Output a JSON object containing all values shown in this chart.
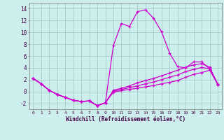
{
  "background_color": "#cceeed",
  "grid_color": "#aacccc",
  "line_color": "#cc00cc",
  "x_hours": [
    0,
    1,
    2,
    3,
    4,
    5,
    6,
    7,
    8,
    9,
    10,
    11,
    12,
    13,
    14,
    15,
    16,
    17,
    18,
    19,
    20,
    21,
    22,
    23
  ],
  "temp_line": [
    2.2,
    1.3,
    0.2,
    -0.5,
    -1.0,
    -1.5,
    -1.7,
    -1.6,
    -2.4,
    -1.9,
    7.8,
    11.5,
    11.0,
    13.5,
    13.8,
    12.4,
    10.1,
    6.5,
    4.2,
    4.0,
    5.0,
    5.0,
    3.8,
    1.3
  ],
  "wc_line1": [
    2.2,
    1.3,
    0.2,
    -0.5,
    -1.0,
    -1.5,
    -1.7,
    -1.6,
    -2.4,
    -1.9,
    -0.1,
    0.15,
    0.35,
    0.55,
    0.8,
    1.0,
    1.3,
    1.55,
    1.85,
    2.4,
    2.9,
    3.2,
    3.6,
    1.2
  ],
  "wc_line2": [
    2.2,
    1.3,
    0.2,
    -0.5,
    -1.0,
    -1.5,
    -1.7,
    -1.6,
    -2.4,
    -1.9,
    0.05,
    0.35,
    0.65,
    0.95,
    1.3,
    1.6,
    2.0,
    2.4,
    2.8,
    3.35,
    3.75,
    4.05,
    3.85,
    1.2
  ],
  "wc_line3": [
    2.2,
    1.3,
    0.2,
    -0.5,
    -1.0,
    -1.5,
    -1.7,
    -1.6,
    -2.4,
    -1.9,
    0.2,
    0.55,
    0.95,
    1.45,
    1.85,
    2.2,
    2.65,
    3.1,
    3.6,
    4.1,
    4.5,
    4.7,
    4.1,
    1.2
  ],
  "ylim": [
    -3,
    15
  ],
  "yticks": [
    -2,
    0,
    2,
    4,
    6,
    8,
    10,
    12,
    14
  ],
  "xlim": [
    -0.5,
    23.5
  ],
  "xlabel": "Windchill (Refroidissement éolien,°C)"
}
